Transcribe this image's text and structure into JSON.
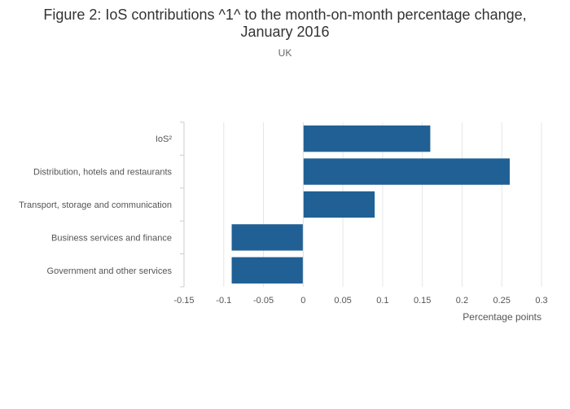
{
  "chart_data": {
    "type": "bar",
    "orientation": "horizontal",
    "title_lines": [
      "Figure 2: IoS contributions ^1^ to the month-on-month percentage change,",
      "January 2016"
    ],
    "subtitle": "UK",
    "categories": [
      "IoS²",
      "Distribution, hotels and restaurants",
      "Transport, storage and communication",
      "Business services and finance",
      "Government and other services"
    ],
    "values": [
      0.16,
      0.26,
      0.09,
      -0.09,
      -0.09
    ],
    "xlabel": "Percentage points",
    "xlim": [
      -0.15,
      0.3
    ],
    "xticks": [
      -0.15,
      -0.1,
      -0.05,
      0,
      0.05,
      0.1,
      0.15,
      0.2,
      0.25,
      0.3
    ],
    "xtick_labels": [
      "-0.15",
      "-0.1",
      "-0.05",
      "0",
      "0.05",
      "0.1",
      "0.15",
      "0.2",
      "0.25",
      "0.3"
    ],
    "grid": true,
    "bar_color": "#206095",
    "grid_color": "#e6e6e6",
    "axis_color": "#cccccc"
  }
}
